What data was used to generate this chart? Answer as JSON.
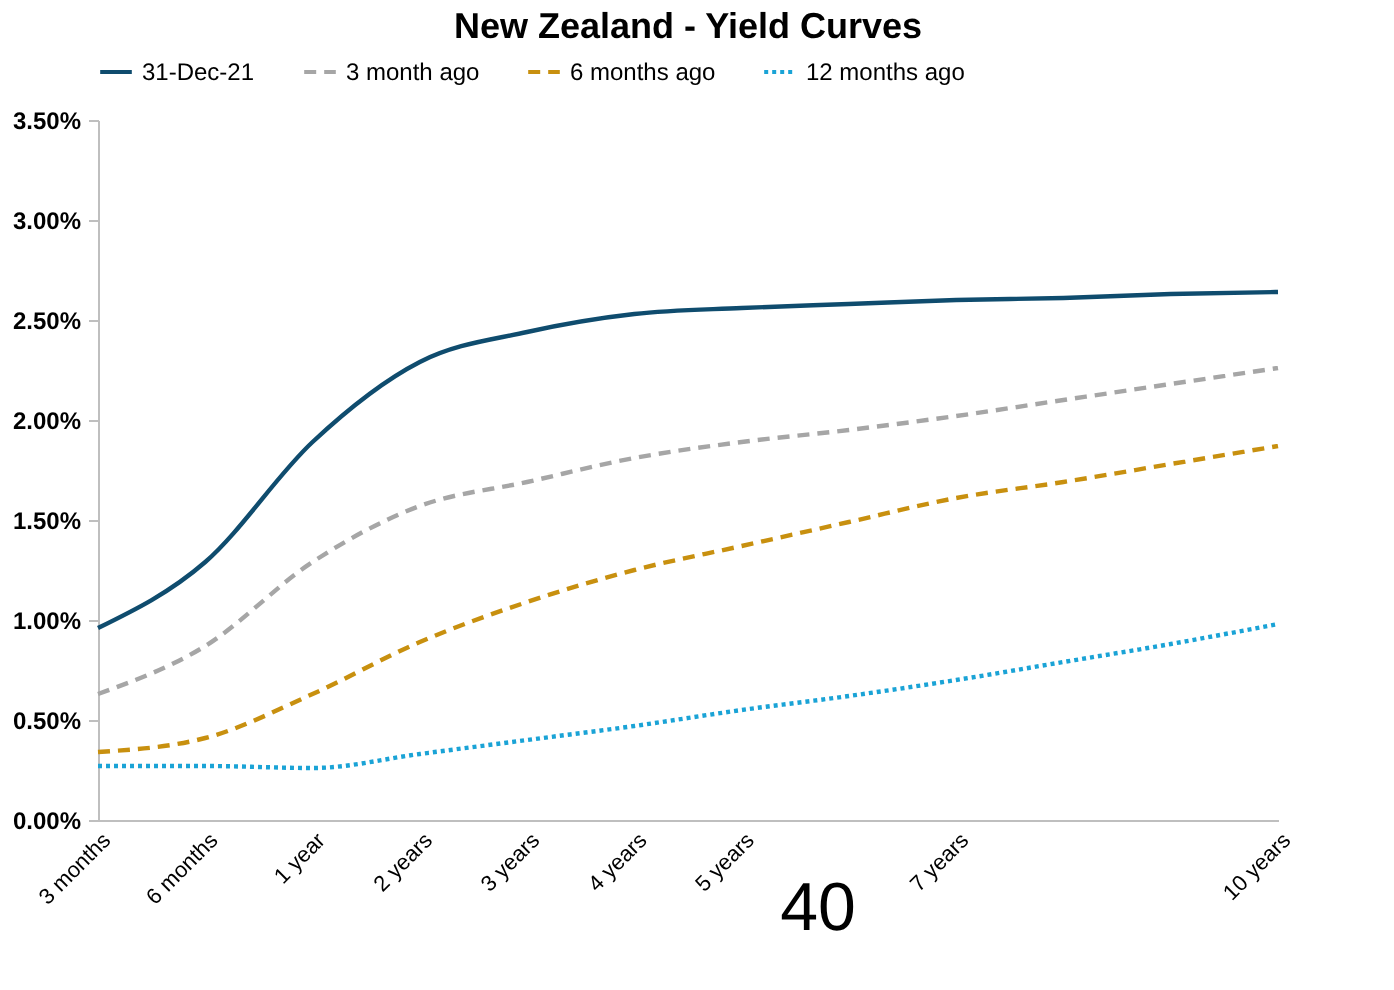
{
  "chart_data": {
    "type": "line",
    "title": "New Zealand - Yield Curves",
    "categories": [
      "3 months",
      "6 months",
      "1 year",
      "2 years",
      "3 years",
      "4 years",
      "5 years",
      null,
      "7 years",
      null,
      null,
      "10 years"
    ],
    "series": [
      {
        "name": "31-Dec-21",
        "color": "#0f4c6e",
        "line_style": "solid",
        "values": [
          0.96,
          1.29,
          1.89,
          2.29,
          2.44,
          2.53,
          2.56,
          2.58,
          2.6,
          2.61,
          2.63,
          2.64
        ]
      },
      {
        "name": "3 month ago",
        "color": "#a6a6a6",
        "line_style": "dashed",
        "values": [
          0.63,
          0.87,
          1.29,
          1.57,
          1.69,
          1.81,
          1.89,
          1.95,
          2.02,
          2.1,
          2.18,
          2.26
        ]
      },
      {
        "name": "6 months ago",
        "color": "#c8900f",
        "line_style": "dashed",
        "values": [
          0.34,
          0.41,
          0.63,
          0.89,
          1.09,
          1.25,
          1.37,
          1.49,
          1.61,
          1.69,
          1.78,
          1.87
        ]
      },
      {
        "name": "12 months ago",
        "color": "#1aa3d6",
        "line_style": "dotted",
        "values": [
          0.27,
          0.27,
          0.26,
          0.33,
          0.4,
          0.47,
          0.55,
          0.62,
          0.7,
          0.79,
          0.88,
          0.98
        ]
      }
    ],
    "ylim": [
      0,
      3.5
    ],
    "yticks": [
      {
        "value": 0,
        "label": "0.00%"
      },
      {
        "value": 0.5,
        "label": "0.50%"
      },
      {
        "value": 1,
        "label": "1.00%"
      },
      {
        "value": 1.5,
        "label": "1.50%"
      },
      {
        "value": 2,
        "label": "2.00%"
      },
      {
        "value": 2.5,
        "label": "2.50%"
      },
      {
        "value": 3,
        "label": "3.00%"
      },
      {
        "value": 3.5,
        "label": "3.50%"
      }
    ],
    "grid": false,
    "legend": "top",
    "annotations": [
      "40"
    ]
  }
}
